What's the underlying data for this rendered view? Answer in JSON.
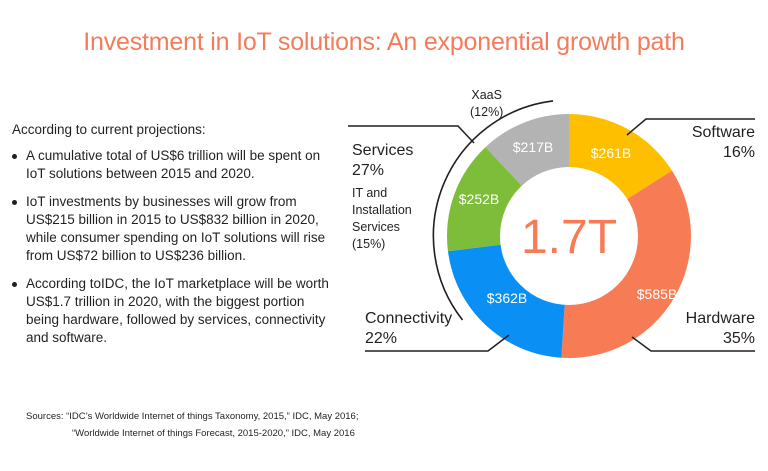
{
  "title": "Investment in IoT solutions: An exponential growth path",
  "intro": "According to current projections:",
  "bullets": [
    "A cumulative total of US$6 trillion will be spent on IoT solutions between 2015 and 2020.",
    "IoT investments by businesses will grow from US$215 billion in 2015 to US$832 billion in 2020, while consumer spending on IoT solutions will rise from US$72 billion to US$236 billion.",
    "According toIDC, the IoT marketplace will be worth US$1.7 trillion in 2020, with the biggest portion being hardware, followed by services, connectivity and software."
  ],
  "sources": {
    "line1": "Sources: “IDC’s Worldwide Internet of things Taxonomy, 2015,” IDC, May 2016;",
    "line2": "“Worldwide Internet of things Forecast, 2015-2020,” IDC, May 2016"
  },
  "labels": {
    "software": {
      "name": "Software",
      "pct": "16%"
    },
    "hardware": {
      "name": "Hardware",
      "pct": "35%"
    },
    "connectivity": {
      "name": "Connectivity",
      "pct": "22%"
    },
    "services": {
      "name": "Services",
      "pct": "27%"
    },
    "it_services": {
      "line1": "IT and",
      "line2": "Installation",
      "line3": "Services",
      "pct": "(15%)"
    },
    "xaas": {
      "name": "XaaS",
      "pct": "(12%)"
    }
  },
  "chart_data": {
    "type": "pie",
    "subtype": "donut",
    "title": "Investment in IoT solutions: An exponential growth path",
    "center_label": "1.7T",
    "total": "US$1.7 trillion (2020)",
    "categories": [
      "Software",
      "Hardware",
      "Connectivity",
      "IT and Installation Services",
      "XaaS"
    ],
    "values_billion_usd": [
      261,
      585,
      362,
      252,
      217
    ],
    "value_labels": [
      "$261B",
      "$585B",
      "$362B",
      "$252B",
      "$217B"
    ],
    "percentages": [
      16,
      35,
      22,
      15,
      12
    ],
    "colors": [
      "#fdbf00",
      "#f77b55",
      "#0a8ff5",
      "#7dbd3a",
      "#b3b3b3"
    ],
    "groups": [
      {
        "name": "Services",
        "percentage": 27,
        "members": [
          "IT and Installation Services",
          "XaaS"
        ]
      }
    ],
    "start_angle_deg": 0,
    "direction": "clockwise"
  },
  "colors": {
    "title": "#f47c5a",
    "center": "#f77b55",
    "text": "#231f20"
  }
}
